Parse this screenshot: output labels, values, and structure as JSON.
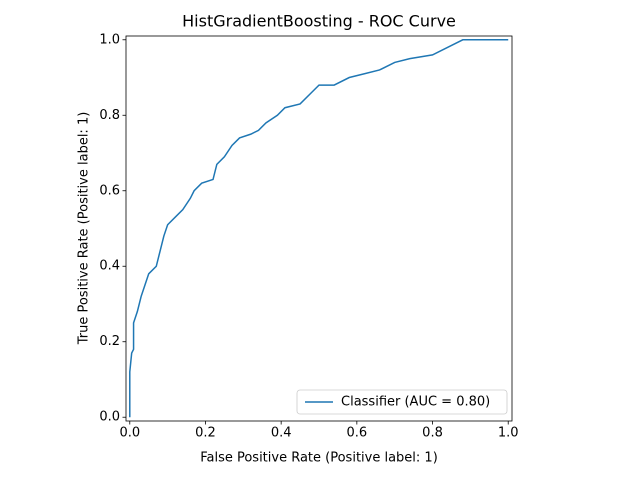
{
  "chart_data": {
    "type": "line",
    "title": "HistGradientBoosting - ROC Curve",
    "xlabel": "False Positive Rate (Positive label: 1)",
    "ylabel": "True Positive Rate (Positive label: 1)",
    "xlim": [
      -0.01,
      1.01
    ],
    "ylim": [
      -0.01,
      1.01
    ],
    "xticks": [
      {
        "value": 0,
        "label": "0.0"
      },
      0.2,
      0.4,
      0.6,
      0.8,
      {
        "value": 1,
        "label": "1.0"
      }
    ],
    "yticks": [
      {
        "value": 0,
        "label": "0.0"
      },
      0.2,
      0.4,
      0.6,
      0.8,
      {
        "value": 1,
        "label": "1.0"
      }
    ],
    "legend": "lower right",
    "series": [
      {
        "name": "Classifier (AUC = 0.80)",
        "color": "#1f77b4",
        "x": [
          0,
          0,
          0.005,
          0.01,
          0.01,
          0.02,
          0.03,
          0.04,
          0.05,
          0.07,
          0.08,
          0.09,
          0.1,
          0.12,
          0.14,
          0.16,
          0.17,
          0.19,
          0.22,
          0.23,
          0.25,
          0.27,
          0.29,
          0.32,
          0.34,
          0.36,
          0.39,
          0.41,
          0.45,
          0.48,
          0.5,
          0.54,
          0.58,
          0.62,
          0.66,
          0.7,
          0.74,
          0.8,
          0.86,
          0.88,
          1.0
        ],
        "values": [
          0,
          0.12,
          0.17,
          0.18,
          0.25,
          0.28,
          0.32,
          0.35,
          0.38,
          0.4,
          0.44,
          0.48,
          0.51,
          0.53,
          0.55,
          0.58,
          0.6,
          0.62,
          0.63,
          0.67,
          0.69,
          0.72,
          0.74,
          0.75,
          0.76,
          0.78,
          0.8,
          0.82,
          0.83,
          0.86,
          0.88,
          0.88,
          0.9,
          0.91,
          0.92,
          0.94,
          0.95,
          0.96,
          0.99,
          1.0,
          1.0
        ]
      }
    ]
  }
}
